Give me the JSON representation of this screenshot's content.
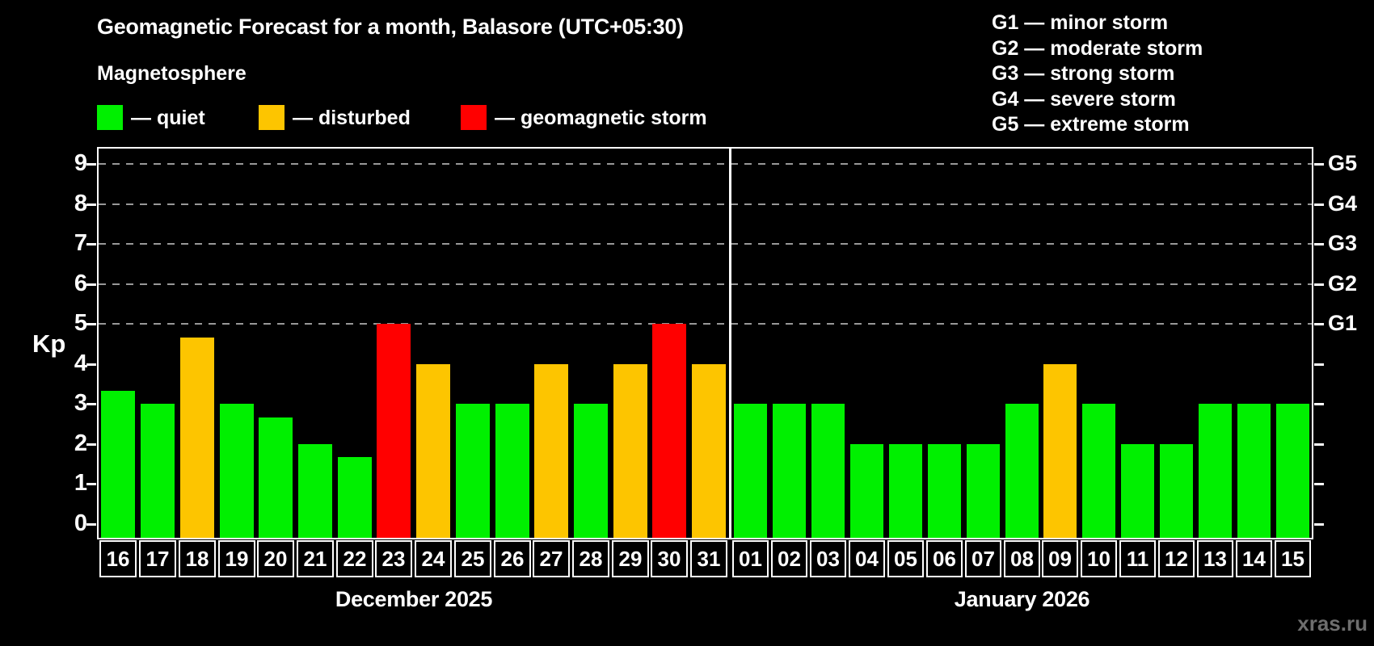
{
  "header": {
    "title": "Geomagnetic Forecast for a month, Balasore (UTC+05:30)",
    "subtitle": "Magnetosphere"
  },
  "legend": {
    "items": [
      {
        "name": "quiet",
        "label": "— quiet",
        "color": "#00f000"
      },
      {
        "name": "disturbed",
        "label": "— disturbed",
        "color": "#fdc500"
      },
      {
        "name": "storm",
        "label": "— geomagnetic storm",
        "color": "#ff0000"
      }
    ]
  },
  "storm_legend": {
    "items": [
      "G1 — minor storm",
      "G2 — moderate storm",
      "G3 — strong storm",
      "G4 — severe storm",
      "G5 — extreme storm"
    ]
  },
  "watermark": "xras.ru",
  "chart_data": {
    "type": "bar",
    "title": "Geomagnetic Forecast for a month, Balasore (UTC+05:30)",
    "ylabel": "Kp",
    "ylim": [
      0,
      9
    ],
    "yticks": [
      0,
      1,
      2,
      3,
      4,
      5,
      6,
      7,
      8,
      9
    ],
    "gridlines_at": [
      5,
      6,
      7,
      8,
      9
    ],
    "grid": "dashed horizontal at Kp 5-9",
    "legend_position": "top",
    "right_axis": [
      {
        "kp": 5,
        "label": "G1"
      },
      {
        "kp": 6,
        "label": "G2"
      },
      {
        "kp": 7,
        "label": "G3"
      },
      {
        "kp": 8,
        "label": "G4"
      },
      {
        "kp": 9,
        "label": "G5"
      }
    ],
    "status_colors": {
      "quiet": "#00f000",
      "disturbed": "#fdc500",
      "storm": "#ff0000"
    },
    "months": [
      {
        "label": "December 2025",
        "days": [
          {
            "day": "16",
            "kp": 3.33,
            "status": "quiet"
          },
          {
            "day": "17",
            "kp": 3,
            "status": "quiet"
          },
          {
            "day": "18",
            "kp": 4.67,
            "status": "disturbed"
          },
          {
            "day": "19",
            "kp": 3,
            "status": "quiet"
          },
          {
            "day": "20",
            "kp": 2.67,
            "status": "quiet"
          },
          {
            "day": "21",
            "kp": 2,
            "status": "quiet"
          },
          {
            "day": "22",
            "kp": 1.67,
            "status": "quiet"
          },
          {
            "day": "23",
            "kp": 5,
            "status": "storm"
          },
          {
            "day": "24",
            "kp": 4,
            "status": "disturbed"
          },
          {
            "day": "25",
            "kp": 3,
            "status": "quiet"
          },
          {
            "day": "26",
            "kp": 3,
            "status": "quiet"
          },
          {
            "day": "27",
            "kp": 4,
            "status": "disturbed"
          },
          {
            "day": "28",
            "kp": 3,
            "status": "quiet"
          },
          {
            "day": "29",
            "kp": 4,
            "status": "disturbed"
          },
          {
            "day": "30",
            "kp": 5,
            "status": "storm"
          },
          {
            "day": "31",
            "kp": 4,
            "status": "disturbed"
          }
        ]
      },
      {
        "label": "January 2026",
        "days": [
          {
            "day": "01",
            "kp": 3,
            "status": "quiet"
          },
          {
            "day": "02",
            "kp": 3,
            "status": "quiet"
          },
          {
            "day": "03",
            "kp": 3,
            "status": "quiet"
          },
          {
            "day": "04",
            "kp": 2,
            "status": "quiet"
          },
          {
            "day": "05",
            "kp": 2,
            "status": "quiet"
          },
          {
            "day": "06",
            "kp": 2,
            "status": "quiet"
          },
          {
            "day": "07",
            "kp": 2,
            "status": "quiet"
          },
          {
            "day": "08",
            "kp": 3,
            "status": "quiet"
          },
          {
            "day": "09",
            "kp": 4,
            "status": "disturbed"
          },
          {
            "day": "10",
            "kp": 3,
            "status": "quiet"
          },
          {
            "day": "11",
            "kp": 2,
            "status": "quiet"
          },
          {
            "day": "12",
            "kp": 2,
            "status": "quiet"
          },
          {
            "day": "13",
            "kp": 3,
            "status": "quiet"
          },
          {
            "day": "14",
            "kp": 3,
            "status": "quiet"
          },
          {
            "day": "15",
            "kp": 3,
            "status": "quiet"
          }
        ]
      }
    ]
  }
}
